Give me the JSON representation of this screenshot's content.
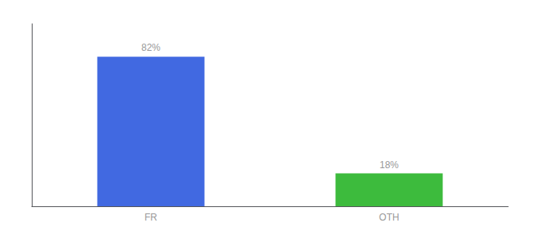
{
  "chart_data": {
    "type": "bar",
    "categories": [
      "FR",
      "OTH"
    ],
    "values": [
      82,
      18
    ],
    "value_labels": [
      "82%",
      "18%"
    ],
    "colors": [
      "#4169e1",
      "#3dbb3d"
    ],
    "ylim": [
      0,
      100
    ],
    "data_labels": true,
    "tick_labels": "x",
    "grid": false
  }
}
